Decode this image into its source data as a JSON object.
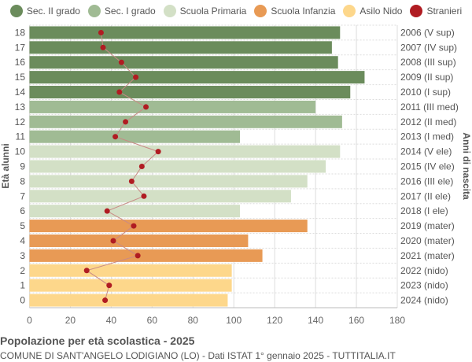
{
  "chart_data": {
    "type": "bar",
    "orientation": "horizontal",
    "title": "Popolazione per età scolastica - 2025",
    "subtitle": "COMUNE DI SANT'ANGELO LODIGIANO (LO) - Dati ISTAT 1° gennaio 2025 - TUTTITALIA.IT",
    "ylabel": "Età alunni",
    "ylabel_right": "Anni di nascita",
    "xlim": [
      0,
      180
    ],
    "xticks": [
      0,
      20,
      40,
      60,
      80,
      100,
      120,
      140,
      160,
      180
    ],
    "grid": true,
    "legend_position": "top",
    "legend": [
      {
        "name": "Sec. II grado",
        "color": "#6b8c5c"
      },
      {
        "name": "Sec. I grado",
        "color": "#a0bb94"
      },
      {
        "name": "Scuola Primaria",
        "color": "#d3e0c6"
      },
      {
        "name": "Scuola Infanzia",
        "color": "#e89a55"
      },
      {
        "name": "Asilo Nido",
        "color": "#fdd78b"
      },
      {
        "name": "Stranieri",
        "color": "#b01c22"
      }
    ],
    "categories": [
      "18",
      "17",
      "16",
      "15",
      "14",
      "13",
      "12",
      "11",
      "10",
      "9",
      "8",
      "7",
      "6",
      "5",
      "4",
      "3",
      "2",
      "1",
      "0"
    ],
    "birth_years": [
      "2006 (V sup)",
      "2007 (IV sup)",
      "2008 (III sup)",
      "2009 (II sup)",
      "2010 (I sup)",
      "2011 (III med)",
      "2012 (II med)",
      "2013 (I med)",
      "2014 (V ele)",
      "2015 (IV ele)",
      "2016 (III ele)",
      "2017 (II ele)",
      "2018 (I ele)",
      "2019 (mater)",
      "2020 (mater)",
      "2021 (mater)",
      "2022 (nido)",
      "2023 (nido)",
      "2024 (nido)"
    ],
    "groups": [
      0,
      0,
      0,
      0,
      0,
      1,
      1,
      1,
      2,
      2,
      2,
      2,
      2,
      3,
      3,
      3,
      4,
      4,
      4
    ],
    "values": [
      152,
      148,
      151,
      164,
      157,
      140,
      153,
      103,
      152,
      145,
      136,
      128,
      103,
      136,
      107,
      114,
      99,
      99,
      97
    ],
    "series": [
      {
        "name": "Stranieri",
        "type": "line",
        "values": [
          35,
          36,
          45,
          52,
          44,
          57,
          47,
          42,
          63,
          55,
          50,
          56,
          38,
          51,
          41,
          53,
          28,
          39,
          37
        ]
      }
    ]
  }
}
